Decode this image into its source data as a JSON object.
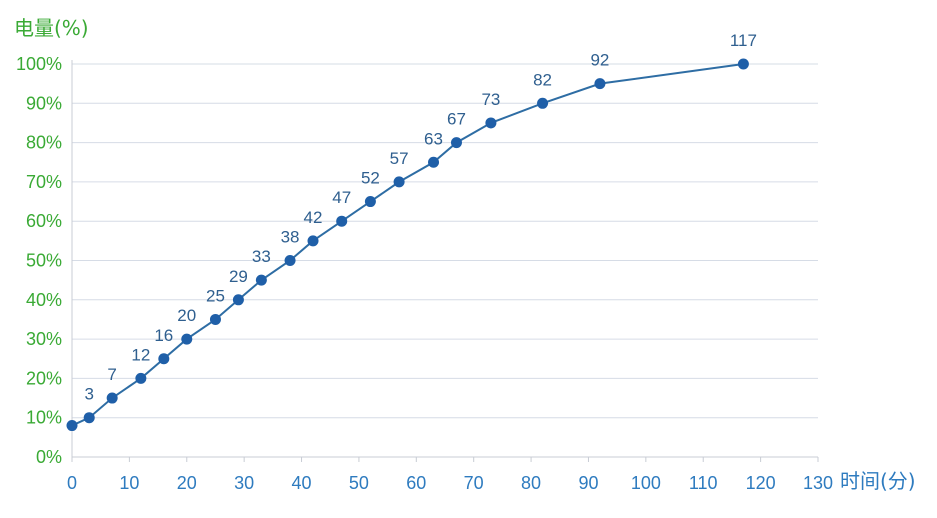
{
  "chart_data": {
    "type": "line",
    "title": "",
    "xlabel": "时间(分)",
    "ylabel": "电量(%)",
    "xlim": [
      0,
      130
    ],
    "ylim": [
      0,
      100
    ],
    "x_ticks": [
      0,
      10,
      20,
      30,
      40,
      50,
      60,
      70,
      80,
      90,
      100,
      110,
      120,
      130
    ],
    "y_ticks": [
      0,
      10,
      20,
      30,
      40,
      50,
      60,
      70,
      80,
      90,
      100
    ],
    "y_tick_suffix": "%",
    "grid": true,
    "legend": "none",
    "series": [
      {
        "x": [
          0,
          3,
          7,
          12,
          16,
          20,
          25,
          29,
          33,
          38,
          42,
          47,
          52,
          57,
          63,
          67,
          73,
          82,
          92,
          117
        ],
        "y": [
          8,
          10,
          15,
          20,
          25,
          30,
          35,
          40,
          45,
          50,
          55,
          60,
          65,
          70,
          75,
          80,
          85,
          90,
          95,
          100
        ],
        "labels": [
          "",
          "3",
          "7",
          "12",
          "16",
          "20",
          "25",
          "29",
          "33",
          "38",
          "42",
          "47",
          "52",
          "57",
          "63",
          "67",
          "73",
          "82",
          "92",
          "117"
        ]
      }
    ],
    "colors": {
      "line": "#2e6da4",
      "marker": "#1f5fa8",
      "data_label": "#2f5f8f",
      "y_axis_text": "#3aaa35",
      "x_axis_text": "#2e7bbf",
      "grid": "#d6dce6",
      "axis": "#c8ccd4"
    }
  }
}
